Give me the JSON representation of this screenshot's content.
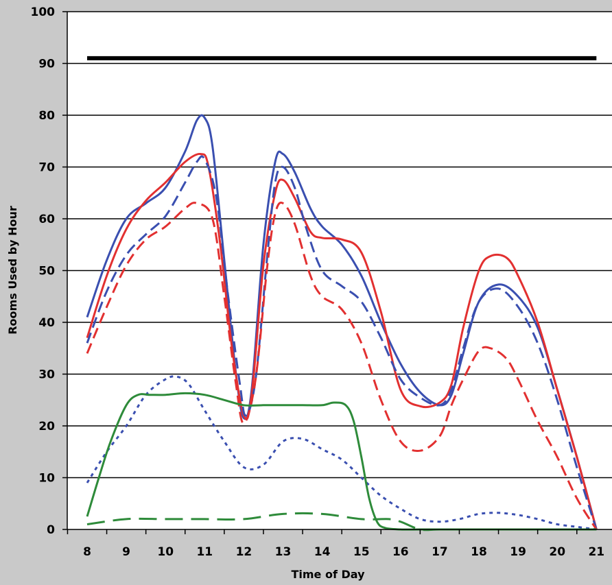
{
  "chart_data": {
    "type": "line",
    "title": "",
    "xlabel": "Time of Day",
    "ylabel": "Rooms Used by Hour",
    "xlim": [
      7.3,
      21.2
    ],
    "ylim": [
      0,
      100
    ],
    "x_ticks": [
      8,
      9,
      10,
      11,
      12,
      13,
      14,
      15,
      16,
      17,
      18,
      19,
      20,
      21
    ],
    "y_ticks": [
      0,
      10,
      20,
      30,
      40,
      50,
      60,
      70,
      80,
      90,
      100
    ],
    "grid": "horizontal",
    "legend": "none",
    "series": [
      {
        "color": "#000000",
        "style": "solid",
        "width": 6,
        "points": [
          [
            8,
            91
          ],
          [
            21,
            91
          ]
        ]
      },
      {
        "color": "#3a4fb0",
        "style": "solid",
        "width": 3,
        "points": [
          [
            8,
            41
          ],
          [
            8.5,
            52
          ],
          [
            9,
            60
          ],
          [
            9.5,
            63
          ],
          [
            10,
            66
          ],
          [
            10.5,
            73
          ],
          [
            10.8,
            79
          ],
          [
            11,
            79.5
          ],
          [
            11.2,
            74
          ],
          [
            11.5,
            52
          ],
          [
            11.8,
            30
          ],
          [
            12,
            21.5
          ],
          [
            12.2,
            27
          ],
          [
            12.5,
            55
          ],
          [
            12.8,
            71
          ],
          [
            13,
            72.5
          ],
          [
            13.3,
            69
          ],
          [
            13.7,
            62
          ],
          [
            14,
            58.5
          ],
          [
            14.5,
            55
          ],
          [
            15,
            49
          ],
          [
            15.5,
            40
          ],
          [
            16,
            32
          ],
          [
            16.5,
            26.5
          ],
          [
            17,
            24
          ],
          [
            17.3,
            26
          ],
          [
            17.6,
            34
          ],
          [
            18,
            44
          ],
          [
            18.5,
            47.3
          ],
          [
            19,
            45
          ],
          [
            19.5,
            39
          ],
          [
            20,
            27
          ],
          [
            20.5,
            14
          ],
          [
            21,
            0
          ]
        ]
      },
      {
        "color": "#e23030",
        "style": "solid",
        "width": 3,
        "points": [
          [
            8,
            37
          ],
          [
            8.5,
            49
          ],
          [
            9,
            58
          ],
          [
            9.5,
            63.5
          ],
          [
            10,
            67
          ],
          [
            10.5,
            71
          ],
          [
            10.9,
            72.5
          ],
          [
            11.1,
            70
          ],
          [
            11.4,
            55
          ],
          [
            11.7,
            35
          ],
          [
            12,
            22
          ],
          [
            12.2,
            26
          ],
          [
            12.5,
            51
          ],
          [
            12.8,
            65
          ],
          [
            13,
            67.5
          ],
          [
            13.3,
            64
          ],
          [
            13.7,
            57.5
          ],
          [
            14,
            56.3
          ],
          [
            14.5,
            56
          ],
          [
            15,
            53.5
          ],
          [
            15.5,
            42
          ],
          [
            16,
            27
          ],
          [
            16.5,
            23.8
          ],
          [
            17,
            24.5
          ],
          [
            17.3,
            28
          ],
          [
            17.6,
            39
          ],
          [
            18,
            50
          ],
          [
            18.3,
            52.8
          ],
          [
            18.7,
            52.5
          ],
          [
            19,
            49
          ],
          [
            19.5,
            40
          ],
          [
            20,
            27
          ],
          [
            20.5,
            14
          ],
          [
            21,
            0
          ]
        ]
      },
      {
        "color": "#3a4fb0",
        "style": "dashed",
        "width": 3,
        "points": [
          [
            8,
            36
          ],
          [
            8.5,
            46
          ],
          [
            9,
            53
          ],
          [
            9.5,
            57
          ],
          [
            10,
            60.5
          ],
          [
            10.5,
            67
          ],
          [
            10.8,
            71
          ],
          [
            11,
            71.5
          ],
          [
            11.3,
            64
          ],
          [
            11.6,
            45
          ],
          [
            11.9,
            28
          ],
          [
            12.05,
            22
          ],
          [
            12.3,
            29
          ],
          [
            12.6,
            53
          ],
          [
            12.8,
            67
          ],
          [
            13,
            70
          ],
          [
            13.3,
            66
          ],
          [
            13.6,
            58
          ],
          [
            14,
            50
          ],
          [
            14.5,
            47
          ],
          [
            15,
            44
          ],
          [
            15.5,
            37
          ],
          [
            16,
            29
          ],
          [
            16.5,
            25.5
          ],
          [
            17,
            24
          ],
          [
            17.3,
            27
          ],
          [
            17.6,
            35
          ],
          [
            18,
            44
          ],
          [
            18.5,
            46.5
          ],
          [
            19,
            43
          ],
          [
            19.5,
            36
          ],
          [
            20,
            25
          ],
          [
            20.5,
            12
          ],
          [
            21,
            0
          ]
        ]
      },
      {
        "color": "#e23030",
        "style": "dashed",
        "width": 3,
        "points": [
          [
            8,
            34
          ],
          [
            8.5,
            43
          ],
          [
            9,
            51
          ],
          [
            9.5,
            56
          ],
          [
            10,
            58.5
          ],
          [
            10.5,
            62
          ],
          [
            10.8,
            63
          ],
          [
            11.2,
            60
          ],
          [
            11.5,
            45
          ],
          [
            11.8,
            28
          ],
          [
            12,
            20.5
          ],
          [
            12.3,
            29
          ],
          [
            12.6,
            51
          ],
          [
            12.8,
            61
          ],
          [
            13,
            63
          ],
          [
            13.3,
            59
          ],
          [
            13.7,
            49
          ],
          [
            14,
            45
          ],
          [
            14.5,
            42.5
          ],
          [
            15,
            36
          ],
          [
            15.5,
            25
          ],
          [
            16,
            17
          ],
          [
            16.5,
            15.2
          ],
          [
            17,
            18
          ],
          [
            17.3,
            24
          ],
          [
            17.6,
            29
          ],
          [
            18,
            34.5
          ],
          [
            18.3,
            35
          ],
          [
            18.7,
            33
          ],
          [
            19,
            29
          ],
          [
            19.5,
            21
          ],
          [
            20,
            14
          ],
          [
            20.5,
            6
          ],
          [
            21,
            0
          ]
        ]
      },
      {
        "color": "#3a4fb0",
        "style": "dotted",
        "width": 3,
        "points": [
          [
            8,
            9
          ],
          [
            8.5,
            15
          ],
          [
            9,
            20
          ],
          [
            9.5,
            26
          ],
          [
            10,
            29
          ],
          [
            10.3,
            29.5
          ],
          [
            10.6,
            28
          ],
          [
            11,
            23
          ],
          [
            11.5,
            17
          ],
          [
            12,
            12
          ],
          [
            12.5,
            12.5
          ],
          [
            13,
            17
          ],
          [
            13.5,
            17.5
          ],
          [
            14,
            15.5
          ],
          [
            14.5,
            13.5
          ],
          [
            15,
            10
          ],
          [
            15.5,
            6.5
          ],
          [
            16,
            4
          ],
          [
            16.5,
            2
          ],
          [
            17,
            1.5
          ],
          [
            17.5,
            2
          ],
          [
            18,
            3
          ],
          [
            18.5,
            3.2
          ],
          [
            19,
            2.8
          ],
          [
            19.5,
            2
          ],
          [
            20,
            1
          ],
          [
            20.5,
            0.5
          ],
          [
            21,
            0
          ]
        ]
      },
      {
        "color": "#2e8b3a",
        "style": "solid",
        "width": 3,
        "points": [
          [
            8,
            2.5
          ],
          [
            8.3,
            10
          ],
          [
            8.6,
            17
          ],
          [
            9,
            24
          ],
          [
            9.3,
            26
          ],
          [
            9.6,
            26
          ],
          [
            10,
            26
          ],
          [
            10.5,
            26.3
          ],
          [
            11,
            26
          ],
          [
            11.5,
            25
          ],
          [
            12,
            24
          ],
          [
            12.5,
            24
          ],
          [
            13,
            24
          ],
          [
            13.5,
            24
          ],
          [
            14,
            24
          ],
          [
            14.3,
            24.5
          ],
          [
            14.6,
            24
          ],
          [
            14.8,
            21
          ],
          [
            15,
            14
          ],
          [
            15.2,
            6
          ],
          [
            15.4,
            1.5
          ],
          [
            15.6,
            0.3
          ],
          [
            16,
            0
          ],
          [
            16.5,
            0
          ],
          [
            17,
            0
          ],
          [
            18,
            0
          ],
          [
            19,
            0
          ],
          [
            20,
            0
          ],
          [
            21,
            0
          ]
        ]
      },
      {
        "color": "#2e8b3a",
        "style": "longdash",
        "width": 3,
        "points": [
          [
            8,
            1
          ],
          [
            9,
            2
          ],
          [
            10,
            2
          ],
          [
            11,
            2
          ],
          [
            12,
            2
          ],
          [
            13,
            3
          ],
          [
            14,
            3
          ],
          [
            15,
            2
          ],
          [
            15.7,
            2
          ],
          [
            16,
            1.5
          ],
          [
            16.5,
            0
          ],
          [
            17,
            0
          ],
          [
            18,
            0
          ],
          [
            19,
            0
          ],
          [
            20,
            0
          ],
          [
            21,
            0
          ]
        ]
      }
    ]
  }
}
